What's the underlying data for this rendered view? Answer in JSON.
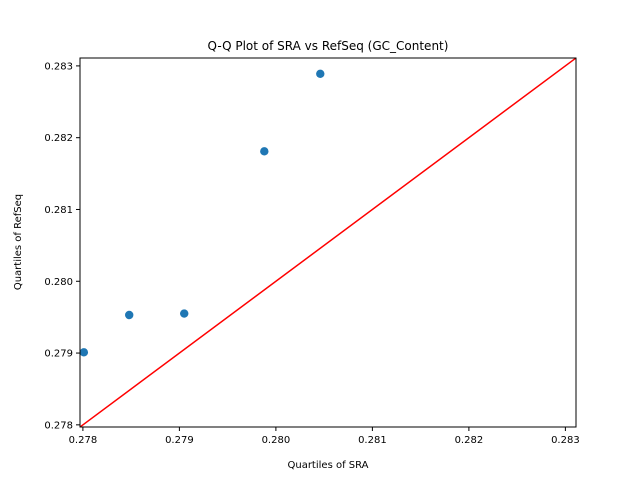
{
  "chart_data": {
    "type": "scatter",
    "title": "Q-Q Plot of SRA vs RefSeq (GC_Content)",
    "xlabel": "Quartiles of SRA",
    "ylabel": "Quartiles of RefSeq",
    "xlim": [
      0.27797,
      0.28311
    ],
    "ylim": [
      0.27797,
      0.28311
    ],
    "xticks": [
      0.278,
      0.279,
      0.28,
      0.281,
      0.282,
      0.283
    ],
    "yticks": [
      0.278,
      0.279,
      0.28,
      0.281,
      0.282,
      0.283
    ],
    "xtick_labels": [
      "0.278",
      "0.279",
      "0.280",
      "0.281",
      "0.282",
      "0.283"
    ],
    "ytick_labels": [
      "0.278",
      "0.279",
      "0.280",
      "0.281",
      "0.282",
      "0.283"
    ],
    "grid": false,
    "points": {
      "x": [
        0.27801,
        0.27848,
        0.27905,
        0.27988,
        0.28046
      ],
      "y": [
        0.27901,
        0.27953,
        0.27955,
        0.28181,
        0.28289
      ],
      "color": "#1f77b4"
    },
    "reference_line": {
      "type": "y=x",
      "color": "#ff0000"
    }
  }
}
